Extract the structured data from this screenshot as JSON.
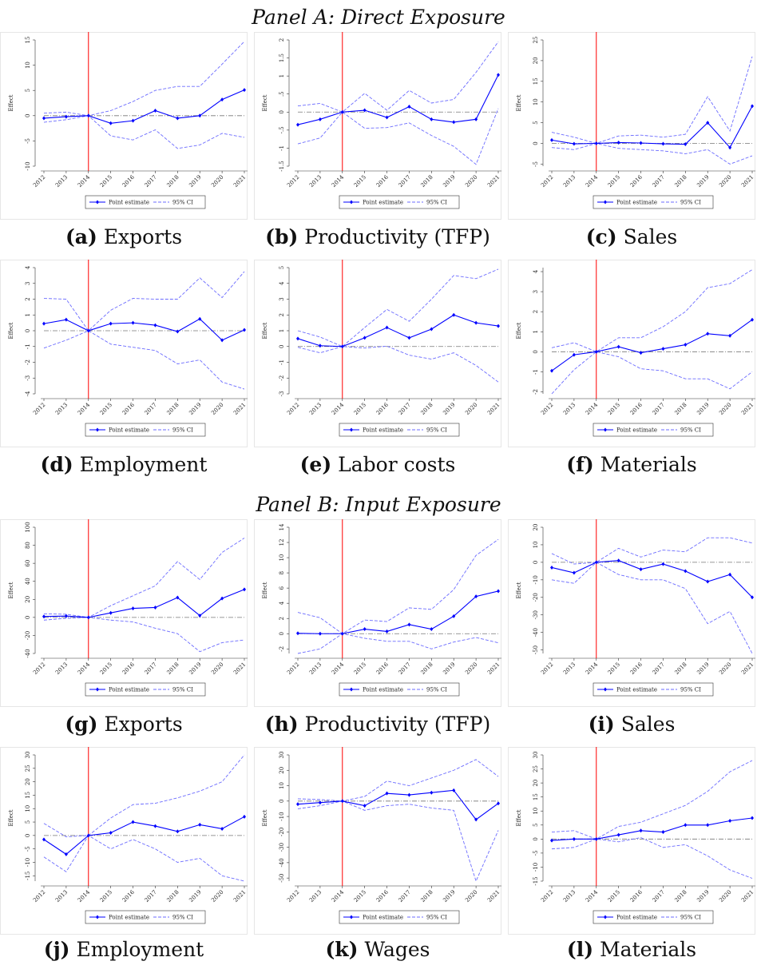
{
  "panels": [
    {
      "title": "Panel A: Direct Exposure"
    },
    {
      "title": "Panel B: Input Exposure"
    }
  ],
  "chart_data": [
    {
      "type": "line",
      "label": "(a)",
      "caption": "Exports",
      "ylabel": "Effect",
      "vline": "2014",
      "categories": [
        "2012",
        "2013",
        "2014",
        "2015",
        "2016",
        "2017",
        "2018",
        "2019",
        "2020",
        "2021"
      ],
      "ylim": [
        -10,
        15
      ],
      "yticks": [
        -10,
        -5,
        0,
        5,
        10,
        15
      ],
      "series": [
        {
          "name": "Point estimate",
          "color": "#0000ff",
          "values": [
            -0.5,
            -0.2,
            0,
            -1.5,
            -1.0,
            1.0,
            -0.5,
            0,
            3.2,
            5.1
          ]
        },
        {
          "name": "95% CI",
          "color": "#6b6bff",
          "upper": [
            0.5,
            0.7,
            0,
            1.0,
            2.8,
            5.0,
            5.8,
            5.8,
            10.2,
            14.7
          ],
          "lower": [
            -1.3,
            -0.8,
            0,
            -4.0,
            -4.8,
            -2.8,
            -6.5,
            -5.8,
            -3.5,
            -4.3
          ]
        }
      ]
    },
    {
      "type": "line",
      "label": "(b)",
      "caption": "Productivity (TFP)",
      "ylabel": "Effect",
      "vline": "2014",
      "categories": [
        "2012",
        "2013",
        "2014",
        "2015",
        "2016",
        "2017",
        "2018",
        "2019",
        "2020",
        "2021"
      ],
      "ylim": [
        -1.5,
        2
      ],
      "yticks": [
        -1.5,
        -1,
        {
          "value": -0.5,
          "label": "-.5"
        },
        0,
        {
          "value": 0.5,
          "label": ".5"
        },
        1,
        1.5,
        2
      ],
      "series": [
        {
          "name": "Point estimate",
          "color": "#0000ff",
          "values": [
            -0.35,
            -0.2,
            0,
            0.05,
            -0.15,
            0.15,
            -0.2,
            -0.28,
            -0.2,
            1.03
          ]
        },
        {
          "name": "95% CI",
          "color": "#6b6bff",
          "upper": [
            0.17,
            0.24,
            0,
            0.52,
            0.05,
            0.6,
            0.25,
            0.35,
            1.1,
            1.95
          ],
          "lower": [
            -0.88,
            -0.72,
            0,
            -0.45,
            -0.43,
            -0.3,
            -0.65,
            -0.95,
            -1.45,
            0.1
          ]
        }
      ]
    },
    {
      "type": "line",
      "label": "(c)",
      "caption": "Sales",
      "ylabel": "Effect",
      "vline": "2014",
      "categories": [
        "2012",
        "2013",
        "2014",
        "2015",
        "2016",
        "2017",
        "2018",
        "2019",
        "2020",
        "2021"
      ],
      "ylim": [
        -5.5,
        25
      ],
      "yticks": [
        -5,
        0,
        5,
        10,
        15,
        20,
        25
      ],
      "series": [
        {
          "name": "Point estimate",
          "color": "#0000ff",
          "values": [
            0.8,
            -0.1,
            0,
            0.2,
            0.1,
            -0.1,
            -0.2,
            5,
            -1,
            9
          ]
        },
        {
          "name": "95% CI",
          "color": "#6b6bff",
          "upper": [
            2.7,
            1.5,
            0,
            1.8,
            2,
            1.5,
            2.2,
            11.3,
            3,
            21
          ],
          "lower": [
            -1,
            -1.5,
            0,
            -1.2,
            -1.5,
            -1.8,
            -2.5,
            -1.5,
            -5,
            -3
          ]
        }
      ]
    },
    {
      "type": "line",
      "label": "(d)",
      "caption": "Employment",
      "ylabel": "Effect",
      "vline": "2014",
      "categories": [
        "2012",
        "2013",
        "2014",
        "2015",
        "2016",
        "2017",
        "2018",
        "2019",
        "2020",
        "2021"
      ],
      "ylim": [
        -4,
        4
      ],
      "yticks": [
        -4,
        -3,
        -2,
        -1,
        0,
        1,
        2,
        3,
        4
      ],
      "series": [
        {
          "name": "Point estimate",
          "color": "#0000ff",
          "values": [
            0.45,
            0.7,
            0,
            0.45,
            0.5,
            0.35,
            -0.05,
            0.75,
            -0.6,
            0.05
          ]
        },
        {
          "name": "95% CI",
          "color": "#6b6bff",
          "upper": [
            2.05,
            2.0,
            0,
            1.3,
            2.05,
            2.0,
            2.0,
            3.35,
            2.1,
            3.75
          ],
          "lower": [
            -1.1,
            -0.6,
            0,
            -0.85,
            -1.05,
            -1.25,
            -2.1,
            -1.85,
            -3.25,
            -3.7
          ]
        }
      ]
    },
    {
      "type": "line",
      "label": "(e)",
      "caption": "Labor costs",
      "ylabel": "Effect",
      "vline": "2014",
      "categories": [
        "2012",
        "2013",
        "2014",
        "2015",
        "2016",
        "2017",
        "2018",
        "2019",
        "2020",
        "2021"
      ],
      "ylim": [
        -3,
        5
      ],
      "yticks": [
        -3,
        -2,
        -1,
        0,
        1,
        2,
        3,
        4,
        5
      ],
      "series": [
        {
          "name": "Point estimate",
          "color": "#0000ff",
          "values": [
            0.5,
            0.05,
            0,
            0.55,
            1.2,
            0.55,
            1.1,
            2.0,
            1.5,
            1.3
          ]
        },
        {
          "name": "95% CI",
          "color": "#6b6bff",
          "upper": [
            1.0,
            0.6,
            0,
            1.2,
            2.35,
            1.6,
            3.0,
            4.5,
            4.3,
            4.9
          ],
          "lower": [
            -0.05,
            -0.4,
            0,
            -0.1,
            0.02,
            -0.55,
            -0.8,
            -0.4,
            -1.2,
            -2.25
          ]
        }
      ]
    },
    {
      "type": "line",
      "label": "(f)",
      "caption": "Materials",
      "ylabel": "Effect",
      "vline": "2014",
      "categories": [
        "2012",
        "2013",
        "2014",
        "2015",
        "2016",
        "2017",
        "2018",
        "2019",
        "2020",
        "2021"
      ],
      "ylim": [
        -2.1,
        4.2
      ],
      "yticks": [
        -2,
        -1,
        0,
        1,
        2,
        3,
        4
      ],
      "series": [
        {
          "name": "Point estimate",
          "color": "#0000ff",
          "values": [
            -0.95,
            -0.15,
            0,
            0.25,
            -0.05,
            0.15,
            0.35,
            0.9,
            0.8,
            1.6
          ]
        },
        {
          "name": "95% CI",
          "color": "#6b6bff",
          "upper": [
            0.2,
            0.45,
            0,
            0.7,
            0.7,
            1.25,
            2.0,
            3.2,
            3.4,
            4.1
          ],
          "lower": [
            -2.1,
            -0.9,
            0,
            -0.25,
            -0.85,
            -0.95,
            -1.35,
            -1.35,
            -1.85,
            -1
          ]
        }
      ]
    },
    {
      "type": "line",
      "label": "(g)",
      "caption": "Exports",
      "ylabel": "Effect",
      "vline": "2014",
      "categories": [
        "2012",
        "2013",
        "2014",
        "2015",
        "2016",
        "2017",
        "2018",
        "2019",
        "2020",
        "2021"
      ],
      "ylim": [
        -40,
        100
      ],
      "yticks": [
        -40,
        -20,
        0,
        20,
        40,
        60,
        80,
        100
      ],
      "series": [
        {
          "name": "Point estimate",
          "color": "#0000ff",
          "values": [
            1,
            1.5,
            0,
            5,
            10,
            11,
            22,
            2,
            21,
            31
          ]
        },
        {
          "name": "95% CI",
          "color": "#6b6bff",
          "upper": [
            4,
            3.5,
            0,
            13,
            24,
            35,
            62,
            42,
            72,
            88
          ],
          "lower": [
            -3,
            -1,
            0,
            -3,
            -5,
            -12,
            -18,
            -38,
            -28,
            -25
          ]
        }
      ]
    },
    {
      "type": "line",
      "label": "(h)",
      "caption": "Productivity (TFP)",
      "ylabel": "Effect",
      "vline": "2014",
      "categories": [
        "2012",
        "2013",
        "2014",
        "2015",
        "2016",
        "2017",
        "2018",
        "2019",
        "2020",
        "2021"
      ],
      "ylim": [
        -2.6,
        14
      ],
      "yticks": [
        -2,
        0,
        2,
        4,
        6,
        8,
        10,
        12,
        14
      ],
      "series": [
        {
          "name": "Point estimate",
          "color": "#0000ff",
          "values": [
            0.05,
            0,
            0,
            0.6,
            0.3,
            1.2,
            0.6,
            2.3,
            4.9,
            5.6
          ]
        },
        {
          "name": "95% CI",
          "color": "#6b6bff",
          "upper": [
            2.8,
            2.1,
            0,
            1.8,
            1.6,
            3.4,
            3.2,
            5.8,
            10.3,
            12.4
          ],
          "lower": [
            -2.6,
            -2.0,
            0,
            -0.6,
            -1.0,
            -1.0,
            -2.0,
            -1.1,
            -0.5,
            -1.2
          ]
        }
      ]
    },
    {
      "type": "line",
      "label": "(i)",
      "caption": "Sales",
      "ylabel": "Effect",
      "vline": "2014",
      "categories": [
        "2012",
        "2013",
        "2014",
        "2015",
        "2016",
        "2017",
        "2018",
        "2019",
        "2020",
        "2021"
      ],
      "ylim": [
        -52,
        20
      ],
      "yticks": [
        -50,
        -40,
        -30,
        -20,
        -10,
        0,
        10,
        20
      ],
      "series": [
        {
          "name": "Point estimate",
          "color": "#0000ff",
          "values": [
            -3,
            -6,
            0,
            1,
            -4,
            -1,
            -5,
            -11,
            -7,
            -20
          ]
        },
        {
          "name": "95% CI",
          "color": "#6b6bff",
          "upper": [
            5,
            -1,
            0,
            8,
            3,
            7,
            6,
            14,
            14,
            11
          ],
          "lower": [
            -10,
            -12,
            0,
            -7,
            -10,
            -10,
            -15,
            -35,
            -28,
            -52
          ]
        }
      ]
    },
    {
      "type": "line",
      "label": "(j)",
      "caption": "Employment",
      "ylabel": "Effect",
      "vline": "2014",
      "categories": [
        "2012",
        "2013",
        "2014",
        "2015",
        "2016",
        "2017",
        "2018",
        "2019",
        "2020",
        "2021"
      ],
      "ylim": [
        -17,
        30
      ],
      "yticks": [
        -15,
        -10,
        -5,
        0,
        5,
        10,
        15,
        20,
        25,
        30
      ],
      "series": [
        {
          "name": "Point estimate",
          "color": "#0000ff",
          "values": [
            -1.5,
            -7,
            0,
            1,
            5,
            3.5,
            1.5,
            4,
            2.5,
            7
          ]
        },
        {
          "name": "95% CI",
          "color": "#6b6bff",
          "upper": [
            4.5,
            -0.5,
            0,
            6.5,
            11.5,
            12,
            14,
            16.5,
            20,
            30
          ],
          "lower": [
            -8,
            -13.5,
            0,
            -5,
            -1.5,
            -5,
            -10,
            -8.5,
            -15,
            -17
          ]
        }
      ]
    },
    {
      "type": "line",
      "label": "(k)",
      "caption": "Wages",
      "ylabel": "Effect",
      "vline": "2014",
      "categories": [
        "2012",
        "2013",
        "2014",
        "2015",
        "2016",
        "2017",
        "2018",
        "2019",
        "2020",
        "2021"
      ],
      "ylim": [
        -52,
        30
      ],
      "yticks": [
        -50,
        -40,
        -30,
        -20,
        -10,
        0,
        10,
        20,
        30
      ],
      "series": [
        {
          "name": "Point estimate",
          "color": "#0000ff",
          "values": [
            -2,
            -1,
            0,
            -3,
            5,
            4,
            5.5,
            7,
            -12,
            -1.5
          ]
        },
        {
          "name": "95% CI",
          "color": "#6b6bff",
          "upper": [
            1.5,
            1,
            0,
            3,
            13,
            10,
            15,
            20,
            27,
            16
          ],
          "lower": [
            -5,
            -3,
            0,
            -6,
            -3,
            -2,
            -4.5,
            -6,
            -52,
            -19
          ]
        }
      ]
    },
    {
      "type": "line",
      "label": "(l)",
      "caption": "Materials",
      "ylabel": "Effect",
      "vline": "2014",
      "categories": [
        "2012",
        "2013",
        "2014",
        "2015",
        "2016",
        "2017",
        "2018",
        "2019",
        "2020",
        "2021"
      ],
      "ylim": [
        -15,
        30
      ],
      "yticks": [
        -15,
        -10,
        -5,
        0,
        5,
        10,
        15,
        20,
        25,
        30
      ],
      "series": [
        {
          "name": "Point estimate",
          "color": "#0000ff",
          "values": [
            -0.5,
            0,
            0,
            1.5,
            3,
            2.5,
            5,
            5,
            6.5,
            7.5
          ]
        },
        {
          "name": "95% CI",
          "color": "#6b6bff",
          "upper": [
            2.5,
            3,
            0,
            4.5,
            6,
            9,
            12,
            17,
            24,
            28
          ],
          "lower": [
            -3.5,
            -3,
            0,
            -1,
            0.5,
            -3,
            -2,
            -6,
            -11,
            -14
          ]
        }
      ]
    }
  ]
}
